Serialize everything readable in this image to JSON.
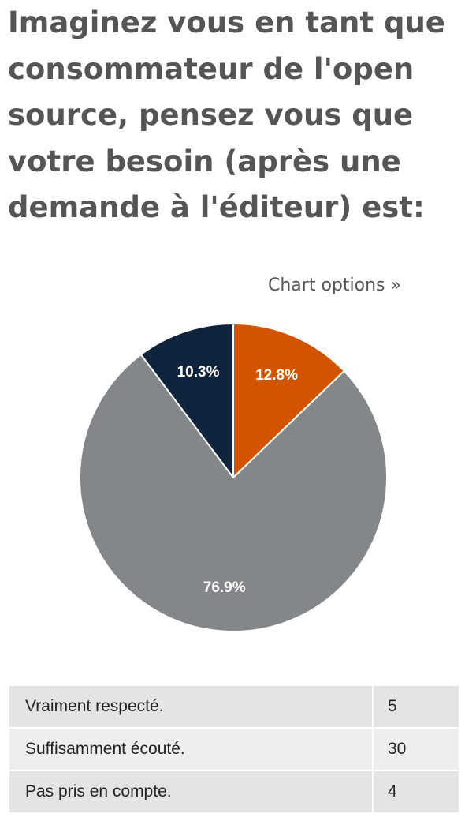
{
  "question": {
    "title": "Imaginez vous en tant que consommateur de l'open source, pensez vous que votre besoin (après une demande à l'éditeur) est:"
  },
  "chart_options": {
    "label": "Chart options »"
  },
  "chart_data": {
    "type": "pie",
    "categories": [
      "Vraiment respecté.",
      "Suffisamment écouté.",
      "Pas pris en compte."
    ],
    "values": [
      5,
      30,
      4
    ],
    "percent_labels": [
      "12.8%",
      "76.9%",
      "10.3%"
    ],
    "colors": [
      "#d35400",
      "#848789",
      "#0f233d"
    ],
    "start_angle_deg": 0,
    "direction": "clockwise",
    "legend": "none"
  },
  "results_table": {
    "rows": [
      {
        "label": "Vraiment respecté.",
        "count": "5"
      },
      {
        "label": "Suffisamment écouté.",
        "count": "30"
      },
      {
        "label": "Pas pris en compte.",
        "count": "4"
      }
    ]
  }
}
